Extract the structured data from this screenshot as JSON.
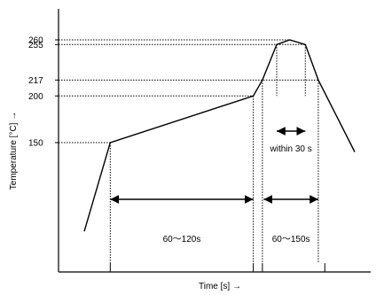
{
  "chart_data": {
    "type": "line",
    "title": "",
    "xlabel": "Time [s] →",
    "ylabel": "Temperature [°C] →",
    "ylim": [
      50,
      280
    ],
    "yticks": [
      260,
      255,
      217,
      200,
      150
    ],
    "grid": false,
    "legend": "none",
    "line_color": "#000000",
    "reference_color": "#000000",
    "series": [
      {
        "name": "",
        "points": [
          {
            "t": 0,
            "temp": 55
          },
          {
            "t": 20,
            "temp": 150
          },
          {
            "t": 130,
            "temp": 200
          },
          {
            "t": 137,
            "temp": 217
          },
          {
            "t": 148,
            "temp": 255
          },
          {
            "t": 158,
            "temp": 260
          },
          {
            "t": 170,
            "temp": 255
          },
          {
            "t": 180,
            "temp": 217
          },
          {
            "t": 208,
            "temp": 140
          }
        ]
      }
    ],
    "x_ticks": [
      20,
      130,
      137,
      185
    ],
    "annotations": [
      {
        "label": "60～120s",
        "from_t": 20,
        "to_t": 130,
        "temp": 115,
        "label_temp": 95
      },
      {
        "label": "60～150s",
        "from_t": 138,
        "to_t": 180,
        "temp": 115,
        "label_temp": 95
      },
      {
        "label": "within 30 s",
        "from_t": 148,
        "to_t": 170,
        "temp": 208,
        "label_temp": 185
      }
    ]
  }
}
